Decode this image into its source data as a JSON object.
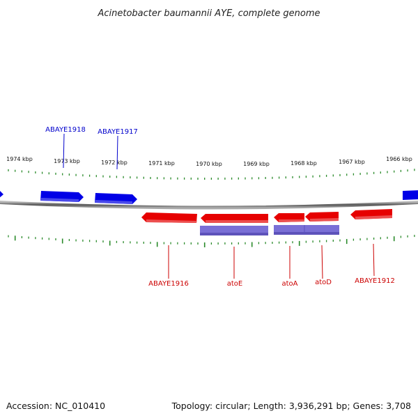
{
  "title": "Acinetobacter baumannii AYE, complete genome",
  "footer": {
    "accession": "Accession: NC_010410",
    "stats": "Topology: circular; Length: 3,936,291 bp; Genes: 3,708"
  },
  "colors": {
    "forward": "#0000e6",
    "reverse": "#e60000",
    "operon": "#7a6fd6",
    "tick": "#2a8a2a",
    "backbone": "#888888",
    "label_forward": "#0000cc",
    "label_reverse": "#cc0000"
  },
  "scale_labels": [
    "1974 kbp",
    "1973 kbp",
    "1972 kbp",
    "1971 kbp",
    "1970 kbp",
    "1969 kbp",
    "1968 kbp",
    "1967 kbp",
    "1966 kbp"
  ],
  "gene_labels": {
    "ABAYE1918": "ABAYE1918",
    "ABAYE1917": "ABAYE1917",
    "ABAYE1916": "ABAYE1916",
    "atoE": "atoE",
    "atoA": "atoA",
    "atoD": "atoD",
    "ABAYE1912": "ABAYE1912"
  }
}
